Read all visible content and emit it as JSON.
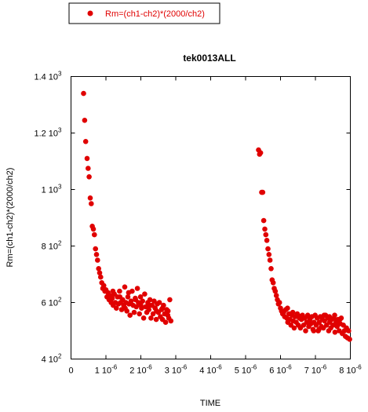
{
  "chart_data": {
    "type": "scatter",
    "title": "tek0013ALL",
    "xlabel": "TIME",
    "ylabel": "Rm=(ch1-ch2)*(2000/ch2)",
    "legend": {
      "placement": "top-left",
      "entries": [
        "Rm=(ch1-ch2)*(2000/ch2)"
      ]
    },
    "xlim": [
      0,
      8e-06
    ],
    "ylim": [
      400,
      1400
    ],
    "x_ticks": [
      {
        "value": 0,
        "mantissa": "0",
        "exp": ""
      },
      {
        "value": 1e-06,
        "mantissa": "1 10",
        "exp": "-6"
      },
      {
        "value": 2e-06,
        "mantissa": "2 10",
        "exp": "-6"
      },
      {
        "value": 3e-06,
        "mantissa": "3 10",
        "exp": "-6"
      },
      {
        "value": 4e-06,
        "mantissa": "4 10",
        "exp": "-6"
      },
      {
        "value": 5e-06,
        "mantissa": "5 10",
        "exp": "-6"
      },
      {
        "value": 6e-06,
        "mantissa": "6 10",
        "exp": "-6"
      },
      {
        "value": 7e-06,
        "mantissa": "7 10",
        "exp": "-6"
      },
      {
        "value": 8e-06,
        "mantissa": "8 10",
        "exp": "-6"
      }
    ],
    "y_ticks": [
      {
        "value": 400,
        "mantissa": "4 10",
        "exp": "2"
      },
      {
        "value": 600,
        "mantissa": "6 10",
        "exp": "2"
      },
      {
        "value": 800,
        "mantissa": "8 10",
        "exp": "2"
      },
      {
        "value": 1000,
        "mantissa": "1 10",
        "exp": "3"
      },
      {
        "value": 1200,
        "mantissa": "1.2 10",
        "exp": "3"
      },
      {
        "value": 1400,
        "mantissa": "1.4 10",
        "exp": "3"
      }
    ],
    "grid": false,
    "marker_color": "#e00000",
    "series": [
      {
        "name": "Rm=(ch1-ch2)*(2000/ch2)",
        "points": [
          [
            3.6e-07,
            1340
          ],
          [
            3.9e-07,
            1245
          ],
          [
            4.2e-07,
            1170
          ],
          [
            4.6e-07,
            1110
          ],
          [
            4.9e-07,
            1075
          ],
          [
            5.2e-07,
            1045
          ],
          [
            5.5e-07,
            970
          ],
          [
            5.8e-07,
            950
          ],
          [
            6.1e-07,
            870
          ],
          [
            6.4e-07,
            860
          ],
          [
            6.7e-07,
            840
          ],
          [
            7e-07,
            790
          ],
          [
            7.3e-07,
            770
          ],
          [
            7.6e-07,
            750
          ],
          [
            7.9e-07,
            720
          ],
          [
            8.2e-07,
            705
          ],
          [
            8.5e-07,
            690
          ],
          [
            8.8e-07,
            670
          ],
          [
            9.1e-07,
            650
          ],
          [
            9.4e-07,
            660
          ],
          [
            9.7e-07,
            640
          ],
          [
            1e-06,
            645
          ],
          [
            1.03e-06,
            620
          ],
          [
            1.06e-06,
            635
          ],
          [
            1.09e-06,
            610
          ],
          [
            1.12e-06,
            625
          ],
          [
            1.15e-06,
            600
          ],
          [
            1.18e-06,
            615
          ],
          [
            1.21e-06,
            590
          ],
          [
            1.24e-06,
            630
          ],
          [
            1.27e-06,
            600
          ],
          [
            1.3e-06,
            580
          ],
          [
            1.33e-06,
            620
          ],
          [
            1.36e-06,
            595
          ],
          [
            1.39e-06,
            640
          ],
          [
            1.42e-06,
            600
          ],
          [
            1.45e-06,
            575
          ],
          [
            1.48e-06,
            610
          ],
          [
            1.51e-06,
            590
          ],
          [
            1.54e-06,
            655
          ],
          [
            1.57e-06,
            600
          ],
          [
            1.6e-06,
            570
          ],
          [
            1.63e-06,
            620
          ],
          [
            1.66e-06,
            595
          ],
          [
            1.69e-06,
            555
          ],
          [
            1.72e-06,
            605
          ],
          [
            1.75e-06,
            640
          ],
          [
            1.78e-06,
            590
          ],
          [
            1.81e-06,
            565
          ],
          [
            1.84e-06,
            615
          ],
          [
            1.87e-06,
            585
          ],
          [
            1.9e-06,
            650
          ],
          [
            1.93e-06,
            600
          ],
          [
            1.96e-06,
            560
          ],
          [
            1.99e-06,
            620
          ],
          [
            2.02e-06,
            580
          ],
          [
            2.05e-06,
            605
          ],
          [
            2.08e-06,
            545
          ],
          [
            2.11e-06,
            630
          ],
          [
            2.14e-06,
            585
          ],
          [
            2.17e-06,
            565
          ],
          [
            2.2e-06,
            600
          ],
          [
            2.23e-06,
            575
          ],
          [
            2.26e-06,
            610
          ],
          [
            2.29e-06,
            545
          ],
          [
            2.32e-06,
            590
          ],
          [
            2.35e-06,
            560
          ],
          [
            2.38e-06,
            605
          ],
          [
            2.41e-06,
            580
          ],
          [
            2.44e-06,
            540
          ],
          [
            2.47e-06,
            595
          ],
          [
            2.5e-06,
            565
          ],
          [
            2.53e-06,
            600
          ],
          [
            2.56e-06,
            550
          ],
          [
            2.59e-06,
            575
          ],
          [
            2.62e-06,
            540
          ],
          [
            2.65e-06,
            590
          ],
          [
            2.68e-06,
            560
          ],
          [
            2.71e-06,
            530
          ],
          [
            2.74e-06,
            575
          ],
          [
            2.77e-06,
            555
          ],
          [
            2.8e-06,
            545
          ],
          [
            2.83e-06,
            610
          ],
          [
            2.86e-06,
            535
          ],
          [
            1.2e-06,
            640
          ],
          [
            1.4e-06,
            620
          ],
          [
            1.65e-06,
            635
          ],
          [
            1.85e-06,
            610
          ],
          [
            2e-06,
            590
          ],
          [
            2.25e-06,
            590
          ],
          [
            2.45e-06,
            570
          ],
          [
            2.62e-06,
            580
          ],
          [
            2.78e-06,
            570
          ],
          [
            1.55e-06,
            580
          ],
          [
            5.37e-06,
            1140
          ],
          [
            5.4e-06,
            1125
          ],
          [
            5.43e-06,
            1130
          ],
          [
            5.46e-06,
            990
          ],
          [
            5.49e-06,
            990
          ],
          [
            5.52e-06,
            890
          ],
          [
            5.55e-06,
            860
          ],
          [
            5.58e-06,
            840
          ],
          [
            5.61e-06,
            820
          ],
          [
            5.64e-06,
            790
          ],
          [
            5.67e-06,
            770
          ],
          [
            5.7e-06,
            750
          ],
          [
            5.73e-06,
            720
          ],
          [
            5.76e-06,
            680
          ],
          [
            5.79e-06,
            670
          ],
          [
            5.82e-06,
            650
          ],
          [
            5.85e-06,
            640
          ],
          [
            5.88e-06,
            625
          ],
          [
            5.91e-06,
            610
          ],
          [
            5.94e-06,
            595
          ],
          [
            5.97e-06,
            600
          ],
          [
            6e-06,
            580
          ],
          [
            6.03e-06,
            570
          ],
          [
            6.06e-06,
            560
          ],
          [
            6.09e-06,
            565
          ],
          [
            6.12e-06,
            550
          ],
          [
            6.15e-06,
            575
          ],
          [
            6.18e-06,
            545
          ],
          [
            6.21e-06,
            530
          ],
          [
            6.24e-06,
            560
          ],
          [
            6.27e-06,
            540
          ],
          [
            6.3e-06,
            520
          ],
          [
            6.33e-06,
            555
          ],
          [
            6.36e-06,
            535
          ],
          [
            6.39e-06,
            510
          ],
          [
            6.42e-06,
            550
          ],
          [
            6.45e-06,
            530
          ],
          [
            6.48e-06,
            560
          ],
          [
            6.51e-06,
            520
          ],
          [
            6.54e-06,
            545
          ],
          [
            6.57e-06,
            510
          ],
          [
            6.6e-06,
            540
          ],
          [
            6.63e-06,
            555
          ],
          [
            6.66e-06,
            520
          ],
          [
            6.69e-06,
            545
          ],
          [
            6.72e-06,
            500
          ],
          [
            6.75e-06,
            530
          ],
          [
            6.78e-06,
            555
          ],
          [
            6.81e-06,
            515
          ],
          [
            6.84e-06,
            540
          ],
          [
            6.87e-06,
            525
          ],
          [
            6.9e-06,
            550
          ],
          [
            6.93e-06,
            505
          ],
          [
            6.96e-06,
            530
          ],
          [
            6.99e-06,
            555
          ],
          [
            7.02e-06,
            520
          ],
          [
            7.05e-06,
            545
          ],
          [
            7.08e-06,
            500
          ],
          [
            7.11e-06,
            530
          ],
          [
            7.14e-06,
            550
          ],
          [
            7.17e-06,
            515
          ],
          [
            7.2e-06,
            540
          ],
          [
            7.23e-06,
            510
          ],
          [
            7.26e-06,
            535
          ],
          [
            7.29e-06,
            555
          ],
          [
            7.32e-06,
            520
          ],
          [
            7.35e-06,
            545
          ],
          [
            7.38e-06,
            500
          ],
          [
            7.41e-06,
            530
          ],
          [
            7.44e-06,
            510
          ],
          [
            7.47e-06,
            540
          ],
          [
            7.5e-06,
            520
          ],
          [
            7.53e-06,
            545
          ],
          [
            7.56e-06,
            495
          ],
          [
            7.59e-06,
            530
          ],
          [
            7.62e-06,
            515
          ],
          [
            7.65e-06,
            540
          ],
          [
            7.68e-06,
            500
          ],
          [
            7.71e-06,
            525
          ],
          [
            7.74e-06,
            545
          ],
          [
            7.77e-06,
            490
          ],
          [
            7.8e-06,
            520
          ],
          [
            7.83e-06,
            500
          ],
          [
            7.86e-06,
            480
          ],
          [
            7.89e-06,
            510
          ],
          [
            7.92e-06,
            475
          ],
          [
            7.95e-06,
            500
          ],
          [
            7.98e-06,
            470
          ],
          [
            6.2e-06,
            580
          ],
          [
            6.5e-06,
            555
          ],
          [
            6.8e-06,
            550
          ],
          [
            7.1e-06,
            505
          ],
          [
            7.4e-06,
            550
          ],
          [
            7.7e-06,
            540
          ],
          [
            6.35e-06,
            565
          ],
          [
            6.95e-06,
            500
          ],
          [
            7.25e-06,
            555
          ],
          [
            7.55e-06,
            555
          ]
        ]
      }
    ]
  }
}
